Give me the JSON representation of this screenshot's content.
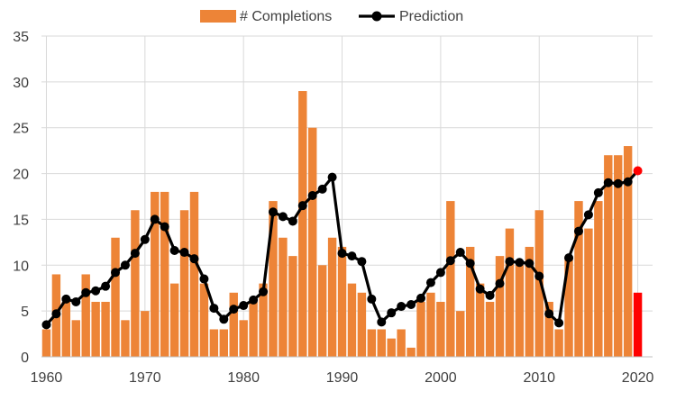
{
  "chart_data": {
    "type": "bar",
    "xlim": [
      1959.5,
      2021.5
    ],
    "ylim": [
      0,
      35
    ],
    "yticks": [
      0,
      5,
      10,
      15,
      20,
      25,
      30,
      35
    ],
    "xticks": [
      1960,
      1970,
      1980,
      1990,
      2000,
      2010,
      2020
    ],
    "grid": true,
    "legend_position": "top-center",
    "years": [
      1960,
      1961,
      1962,
      1963,
      1964,
      1965,
      1966,
      1967,
      1968,
      1969,
      1970,
      1971,
      1972,
      1973,
      1974,
      1975,
      1976,
      1977,
      1978,
      1979,
      1980,
      1981,
      1982,
      1983,
      1984,
      1985,
      1986,
      1987,
      1988,
      1989,
      1990,
      1991,
      1992,
      1993,
      1994,
      1995,
      1996,
      1997,
      1998,
      1999,
      2000,
      2001,
      2002,
      2003,
      2004,
      2005,
      2006,
      2007,
      2008,
      2009,
      2010,
      2011,
      2012,
      2013,
      2014,
      2015,
      2016,
      2017,
      2018,
      2019,
      2020
    ],
    "series": [
      {
        "name": "# Completions",
        "type": "bar",
        "color": "#ED8437",
        "highlight_color": "#FF0000",
        "highlight_index": 60,
        "values": [
          3,
          9,
          6,
          4,
          9,
          6,
          6,
          13,
          4,
          16,
          5,
          18,
          18,
          8,
          16,
          18,
          8,
          3,
          3,
          7,
          4,
          6,
          8,
          17,
          13,
          11,
          29,
          25,
          10,
          13,
          12,
          8,
          7,
          3,
          3,
          2,
          3,
          1,
          6,
          7,
          6,
          17,
          5,
          12,
          8,
          6,
          11,
          14,
          10,
          12,
          16,
          6,
          3,
          11,
          17,
          14,
          17,
          22,
          22,
          23,
          7
        ]
      },
      {
        "name": "Prediction",
        "type": "line",
        "color": "#000000",
        "highlight_color": "#FF0000",
        "highlight_index": 60,
        "values": [
          3.5,
          4.7,
          6.3,
          6.0,
          7.0,
          7.2,
          7.7,
          9.2,
          10.0,
          11.3,
          12.8,
          15.0,
          14.2,
          11.6,
          11.4,
          10.7,
          8.5,
          5.3,
          4.1,
          5.2,
          5.6,
          6.2,
          7.1,
          15.8,
          15.3,
          14.8,
          16.5,
          17.6,
          18.3,
          19.6,
          11.3,
          11.0,
          10.4,
          6.3,
          3.8,
          4.8,
          5.5,
          5.7,
          6.4,
          8.1,
          9.2,
          10.5,
          11.4,
          10.2,
          7.4,
          6.7,
          8.0,
          10.4,
          10.3,
          10.2,
          8.8,
          4.7,
          3.7,
          10.8,
          13.7,
          15.5,
          17.9,
          19.0,
          18.9,
          19.1,
          20.3
        ]
      }
    ]
  }
}
